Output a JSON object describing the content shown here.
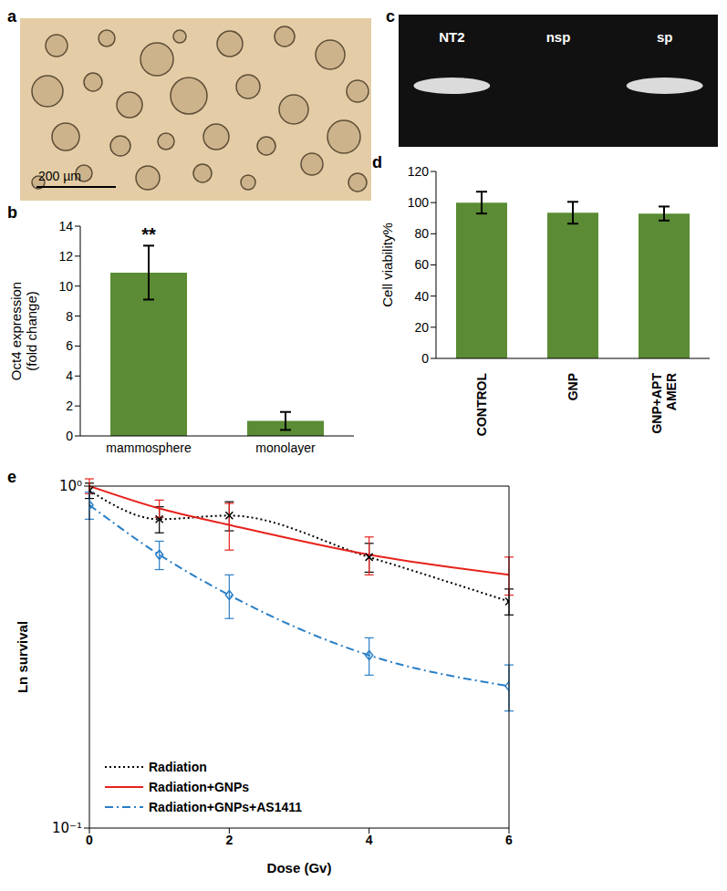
{
  "chart_data": [
    {
      "type": "image",
      "title": "a",
      "annotations": [
        "200 µm"
      ]
    },
    {
      "type": "bar",
      "title": "b",
      "categories": [
        "mammosphere",
        "monolayer"
      ],
      "values": [
        10.9,
        1.0
      ],
      "errors": [
        1.8,
        0.6
      ],
      "annotations": [
        {
          "category": "mammosphere",
          "text": "**"
        }
      ],
      "ylabel": "Oct4 expression (fold change)",
      "ylim": [
        0,
        14
      ],
      "yticks": [
        0,
        2,
        4,
        6,
        8,
        10,
        12,
        14
      ],
      "color": "#5b8c35"
    },
    {
      "type": "image",
      "title": "c",
      "categories": [
        "NT2",
        "nsp",
        "sp"
      ]
    },
    {
      "type": "bar",
      "title": "d",
      "categories": [
        "CONTROL",
        "GNP",
        "GNP+APT AMER"
      ],
      "values": [
        100,
        93.5,
        93
      ],
      "errors": [
        7,
        7,
        4.5
      ],
      "ylabel": "Cell viability%",
      "ylim": [
        0,
        120
      ],
      "yticks": [
        0,
        20,
        40,
        60,
        80,
        100,
        120
      ],
      "color": "#5b8c35"
    },
    {
      "type": "line",
      "title": "e",
      "x": [
        0,
        1,
        2,
        4,
        6
      ],
      "xlim": [
        0,
        6
      ],
      "xticks": [
        0,
        2,
        4,
        6
      ],
      "ylim": [
        0.1,
        1
      ],
      "yticks": [
        {
          "value": 0.1,
          "label": "10⁻¹"
        },
        {
          "value": 1,
          "label": "10⁰"
        }
      ],
      "log": "y",
      "xlabel": "Dose (Gv)",
      "ylabel": "Ln survival",
      "legend": "lower left",
      "series": [
        {
          "name": "Radiation",
          "color": "#000000",
          "line_style": "dotted",
          "marker": "x",
          "values": [
            0.97,
            0.8,
            0.82,
            0.62,
            0.46
          ],
          "errors": [
            0.05,
            0.07,
            0.08,
            0.06,
            0.04
          ]
        },
        {
          "name": "Radiation+GNPs",
          "color": "#e8221c",
          "line_style": "solid",
          "marker": "none",
          "values": [
            1.0,
            0.86,
            0.77,
            0.63,
            0.55
          ],
          "errors": [
            0.05,
            0.05,
            0.12,
            0.08,
            0.07
          ]
        },
        {
          "name": "Radiation+GNPs+AS1411",
          "color": "#2a7fc6",
          "line_style": "dashdot",
          "marker": "diamond",
          "values": [
            0.88,
            0.63,
            0.48,
            0.32,
            0.26
          ],
          "errors": [
            0.08,
            0.06,
            0.07,
            0.04,
            0.04
          ]
        }
      ]
    }
  ]
}
